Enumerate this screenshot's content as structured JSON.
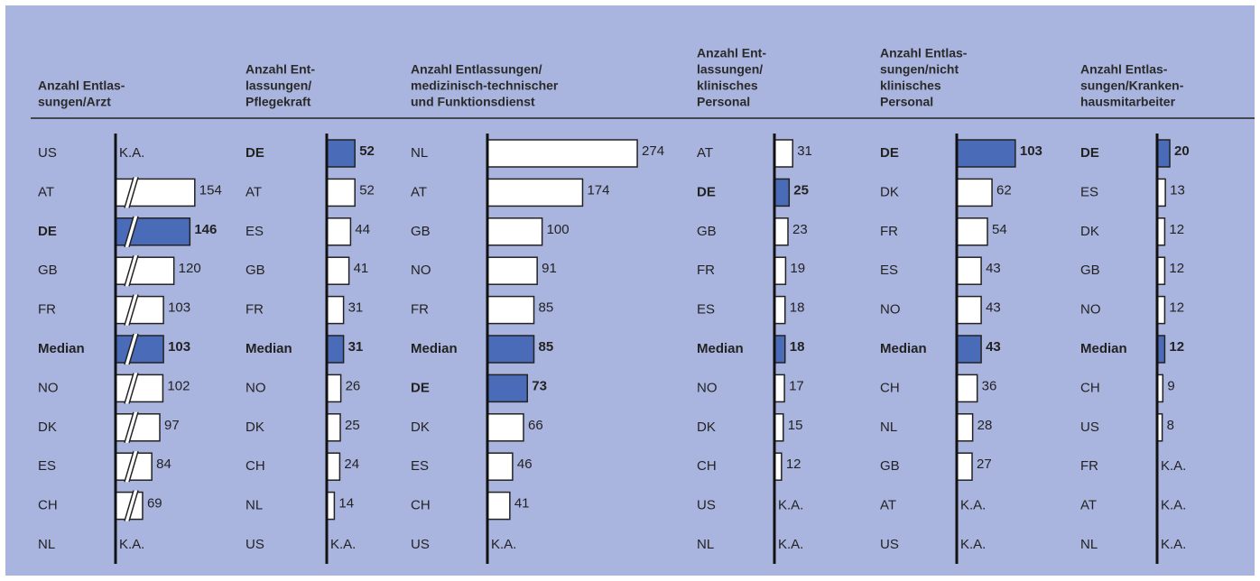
{
  "chart_data": [
    {
      "type": "bar",
      "title": [
        "Anzahl Entlas-",
        "sungen/Arzt"
      ],
      "axis_break": true,
      "xlim": [
        25,
        216
      ],
      "categories": [
        "US",
        "AT",
        "DE",
        "GB",
        "FR",
        "Median",
        "NO",
        "DK",
        "ES",
        "CH",
        "NL"
      ],
      "values": [
        null,
        154,
        146,
        120,
        103,
        103,
        102,
        97,
        84,
        69,
        null
      ],
      "value_labels": [
        "K.A.",
        null,
        null,
        null,
        null,
        null,
        null,
        null,
        null,
        null,
        "K.A."
      ],
      "colors": [
        "#ffffff",
        "#ffffff",
        "#4a6cb8",
        "#ffffff",
        "#ffffff",
        "#4a6cb8",
        "#ffffff",
        "#ffffff",
        "#ffffff",
        "#ffffff",
        "#ffffff"
      ]
    },
    {
      "type": "bar",
      "title": [
        "Anzahl Ent-",
        "lassungen/",
        "Pflegekraft"
      ],
      "xlim": [
        0,
        100
      ],
      "categories": [
        "DE",
        "AT",
        "ES",
        "GB",
        "FR",
        "Median",
        "NO",
        "DK",
        "CH",
        "NL",
        "US"
      ],
      "values": [
        52,
        52,
        44,
        41,
        31,
        31,
        26,
        25,
        24,
        14,
        null
      ],
      "value_labels": [
        null,
        null,
        null,
        null,
        null,
        null,
        null,
        null,
        null,
        null,
        "K.A."
      ],
      "colors": [
        "#4a6cb8",
        "#ffffff",
        "#ffffff",
        "#ffffff",
        "#ffffff",
        "#4a6cb8",
        "#ffffff",
        "#ffffff",
        "#ffffff",
        "#ffffff",
        "#ffffff"
      ]
    },
    {
      "type": "bar",
      "title": [
        "Anzahl Entlassungen/",
        "medizinisch-technischer",
        "und Funktionsdienst"
      ],
      "xlim": [
        0,
        330
      ],
      "categories": [
        "NL",
        "AT",
        "GB",
        "NO",
        "FR",
        "Median",
        "DE",
        "DK",
        "ES",
        "CH",
        "US"
      ],
      "values": [
        274,
        174,
        100,
        91,
        85,
        85,
        73,
        66,
        46,
        41,
        null
      ],
      "value_labels": [
        null,
        null,
        null,
        null,
        null,
        null,
        null,
        null,
        null,
        null,
        "K.A."
      ],
      "colors": [
        "#ffffff",
        "#ffffff",
        "#ffffff",
        "#ffffff",
        "#ffffff",
        "#4a6cb8",
        "#4a6cb8",
        "#ffffff",
        "#ffffff",
        "#ffffff",
        "#ffffff"
      ]
    },
    {
      "type": "bar",
      "title": [
        "Anzahl Ent-",
        "lassungen/",
        "klinisches",
        "Personal"
      ],
      "xlim": [
        0,
        92
      ],
      "categories": [
        "AT",
        "DE",
        "GB",
        "FR",
        "ES",
        "Median",
        "NO",
        "DK",
        "CH",
        "US",
        "NL"
      ],
      "values": [
        31,
        25,
        23,
        19,
        18,
        18,
        17,
        15,
        12,
        null,
        null
      ],
      "value_labels": [
        null,
        null,
        null,
        null,
        null,
        null,
        null,
        null,
        null,
        "K.A.",
        "K.A."
      ],
      "colors": [
        "#ffffff",
        "#4a6cb8",
        "#ffffff",
        "#ffffff",
        "#ffffff",
        "#4a6cb8",
        "#ffffff",
        "#ffffff",
        "#ffffff",
        "#ffffff",
        "#ffffff"
      ]
    },
    {
      "type": "bar",
      "title": [
        "Anzahl Entlas-",
        "sungen/nicht",
        "klinisches",
        "Personal"
      ],
      "xlim": [
        0,
        127
      ],
      "categories": [
        "DE",
        "DK",
        "FR",
        "ES",
        "NO",
        "Median",
        "CH",
        "NL",
        "GB",
        "AT",
        "US"
      ],
      "values": [
        103,
        62,
        54,
        43,
        43,
        43,
        36,
        28,
        27,
        null,
        null
      ],
      "value_labels": [
        null,
        null,
        null,
        null,
        null,
        null,
        null,
        null,
        null,
        "K.A.",
        "K.A."
      ],
      "colors": [
        "#4a6cb8",
        "#ffffff",
        "#ffffff",
        "#ffffff",
        "#ffffff",
        "#4a6cb8",
        "#ffffff",
        "#ffffff",
        "#ffffff",
        "#ffffff",
        "#ffffff"
      ]
    },
    {
      "type": "bar",
      "title": [
        "Anzahl Entlas-",
        "sungen/Kranken-",
        "hausmitarbeiter"
      ],
      "xlim": [
        0,
        57
      ],
      "categories": [
        "DE",
        "ES",
        "DK",
        "GB",
        "NO",
        "Median",
        "CH",
        "US",
        "FR",
        "AT",
        "NL"
      ],
      "values": [
        20,
        13,
        12,
        12,
        12,
        12,
        9,
        8,
        null,
        null,
        null
      ],
      "value_labels": [
        null,
        null,
        null,
        null,
        null,
        null,
        null,
        null,
        "K.A.",
        "K.A.",
        "K.A."
      ],
      "colors": [
        "#4a6cb8",
        "#ffffff",
        "#ffffff",
        "#ffffff",
        "#ffffff",
        "#4a6cb8",
        "#ffffff",
        "#ffffff",
        "#ffffff",
        "#ffffff",
        "#ffffff"
      ]
    }
  ]
}
